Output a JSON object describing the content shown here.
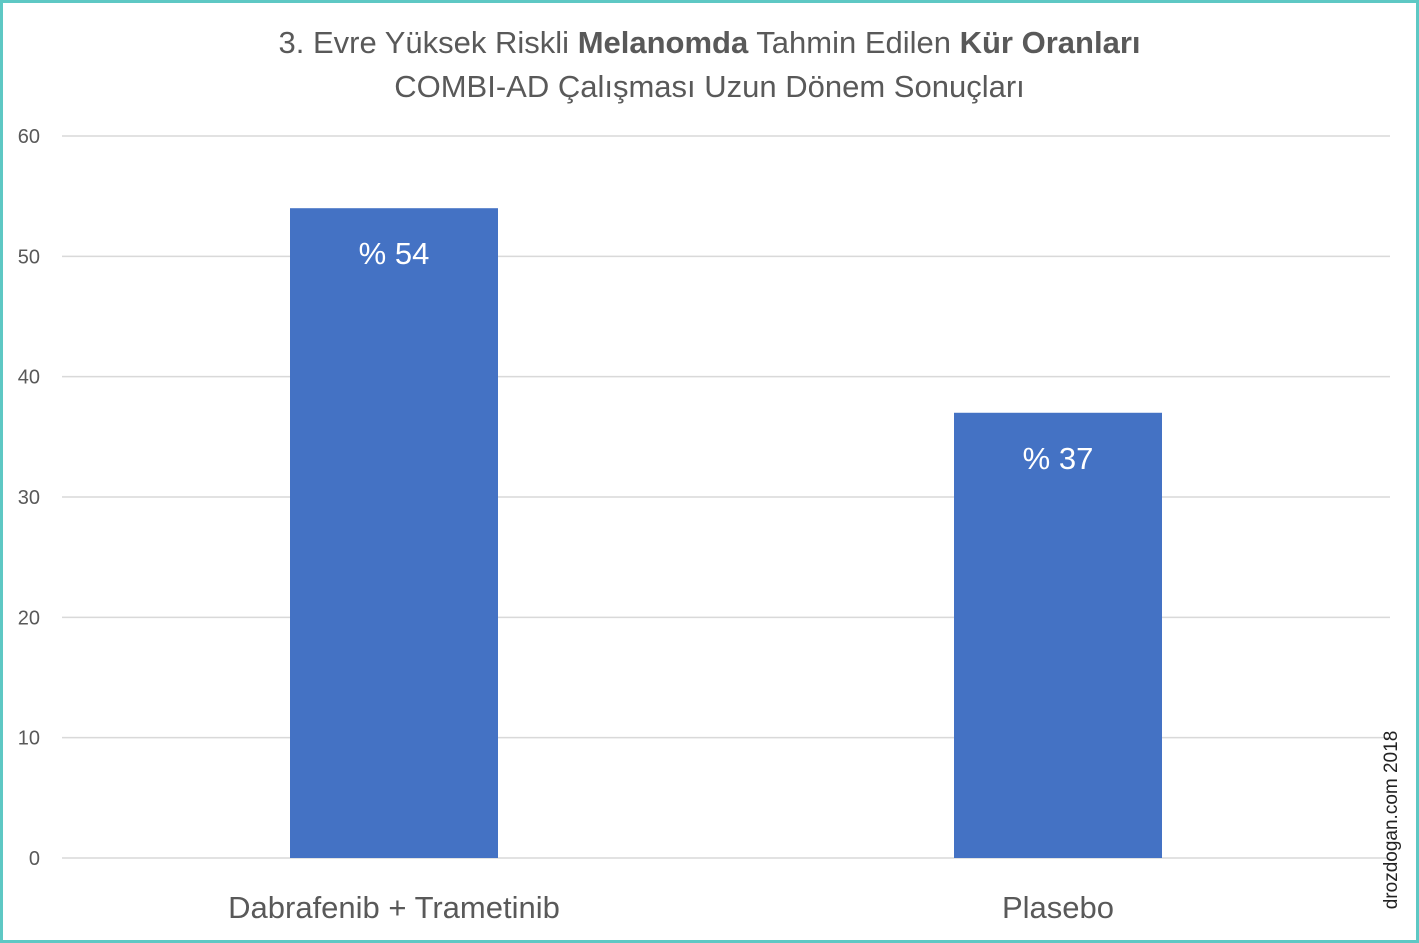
{
  "chart_data": {
    "type": "bar",
    "title": {
      "line1_parts": [
        {
          "text": "3. Evre Yüksek Riskli ",
          "bold": false
        },
        {
          "text": "Melanomda",
          "bold": true
        },
        {
          "text": " Tahmin Edilen ",
          "bold": false
        },
        {
          "text": "Kür Oranları",
          "bold": true
        }
      ],
      "line2": "COMBI-AD Çalışması Uzun Dönem Sonuçları"
    },
    "categories": [
      "Dabrafenib + Trametinib",
      "Plasebo"
    ],
    "values": [
      54,
      37
    ],
    "data_labels": [
      "% 54",
      "% 37"
    ],
    "ylim": [
      0,
      60
    ],
    "yticks": [
      0,
      10,
      20,
      30,
      40,
      50,
      60
    ],
    "grid": true,
    "bar_color": "#4472c4",
    "gridline_color": "#d9d9d9",
    "tick_label_color": "#595959"
  },
  "watermark": "drozdogan.com 2018",
  "frame_color": "#5ec8c4"
}
